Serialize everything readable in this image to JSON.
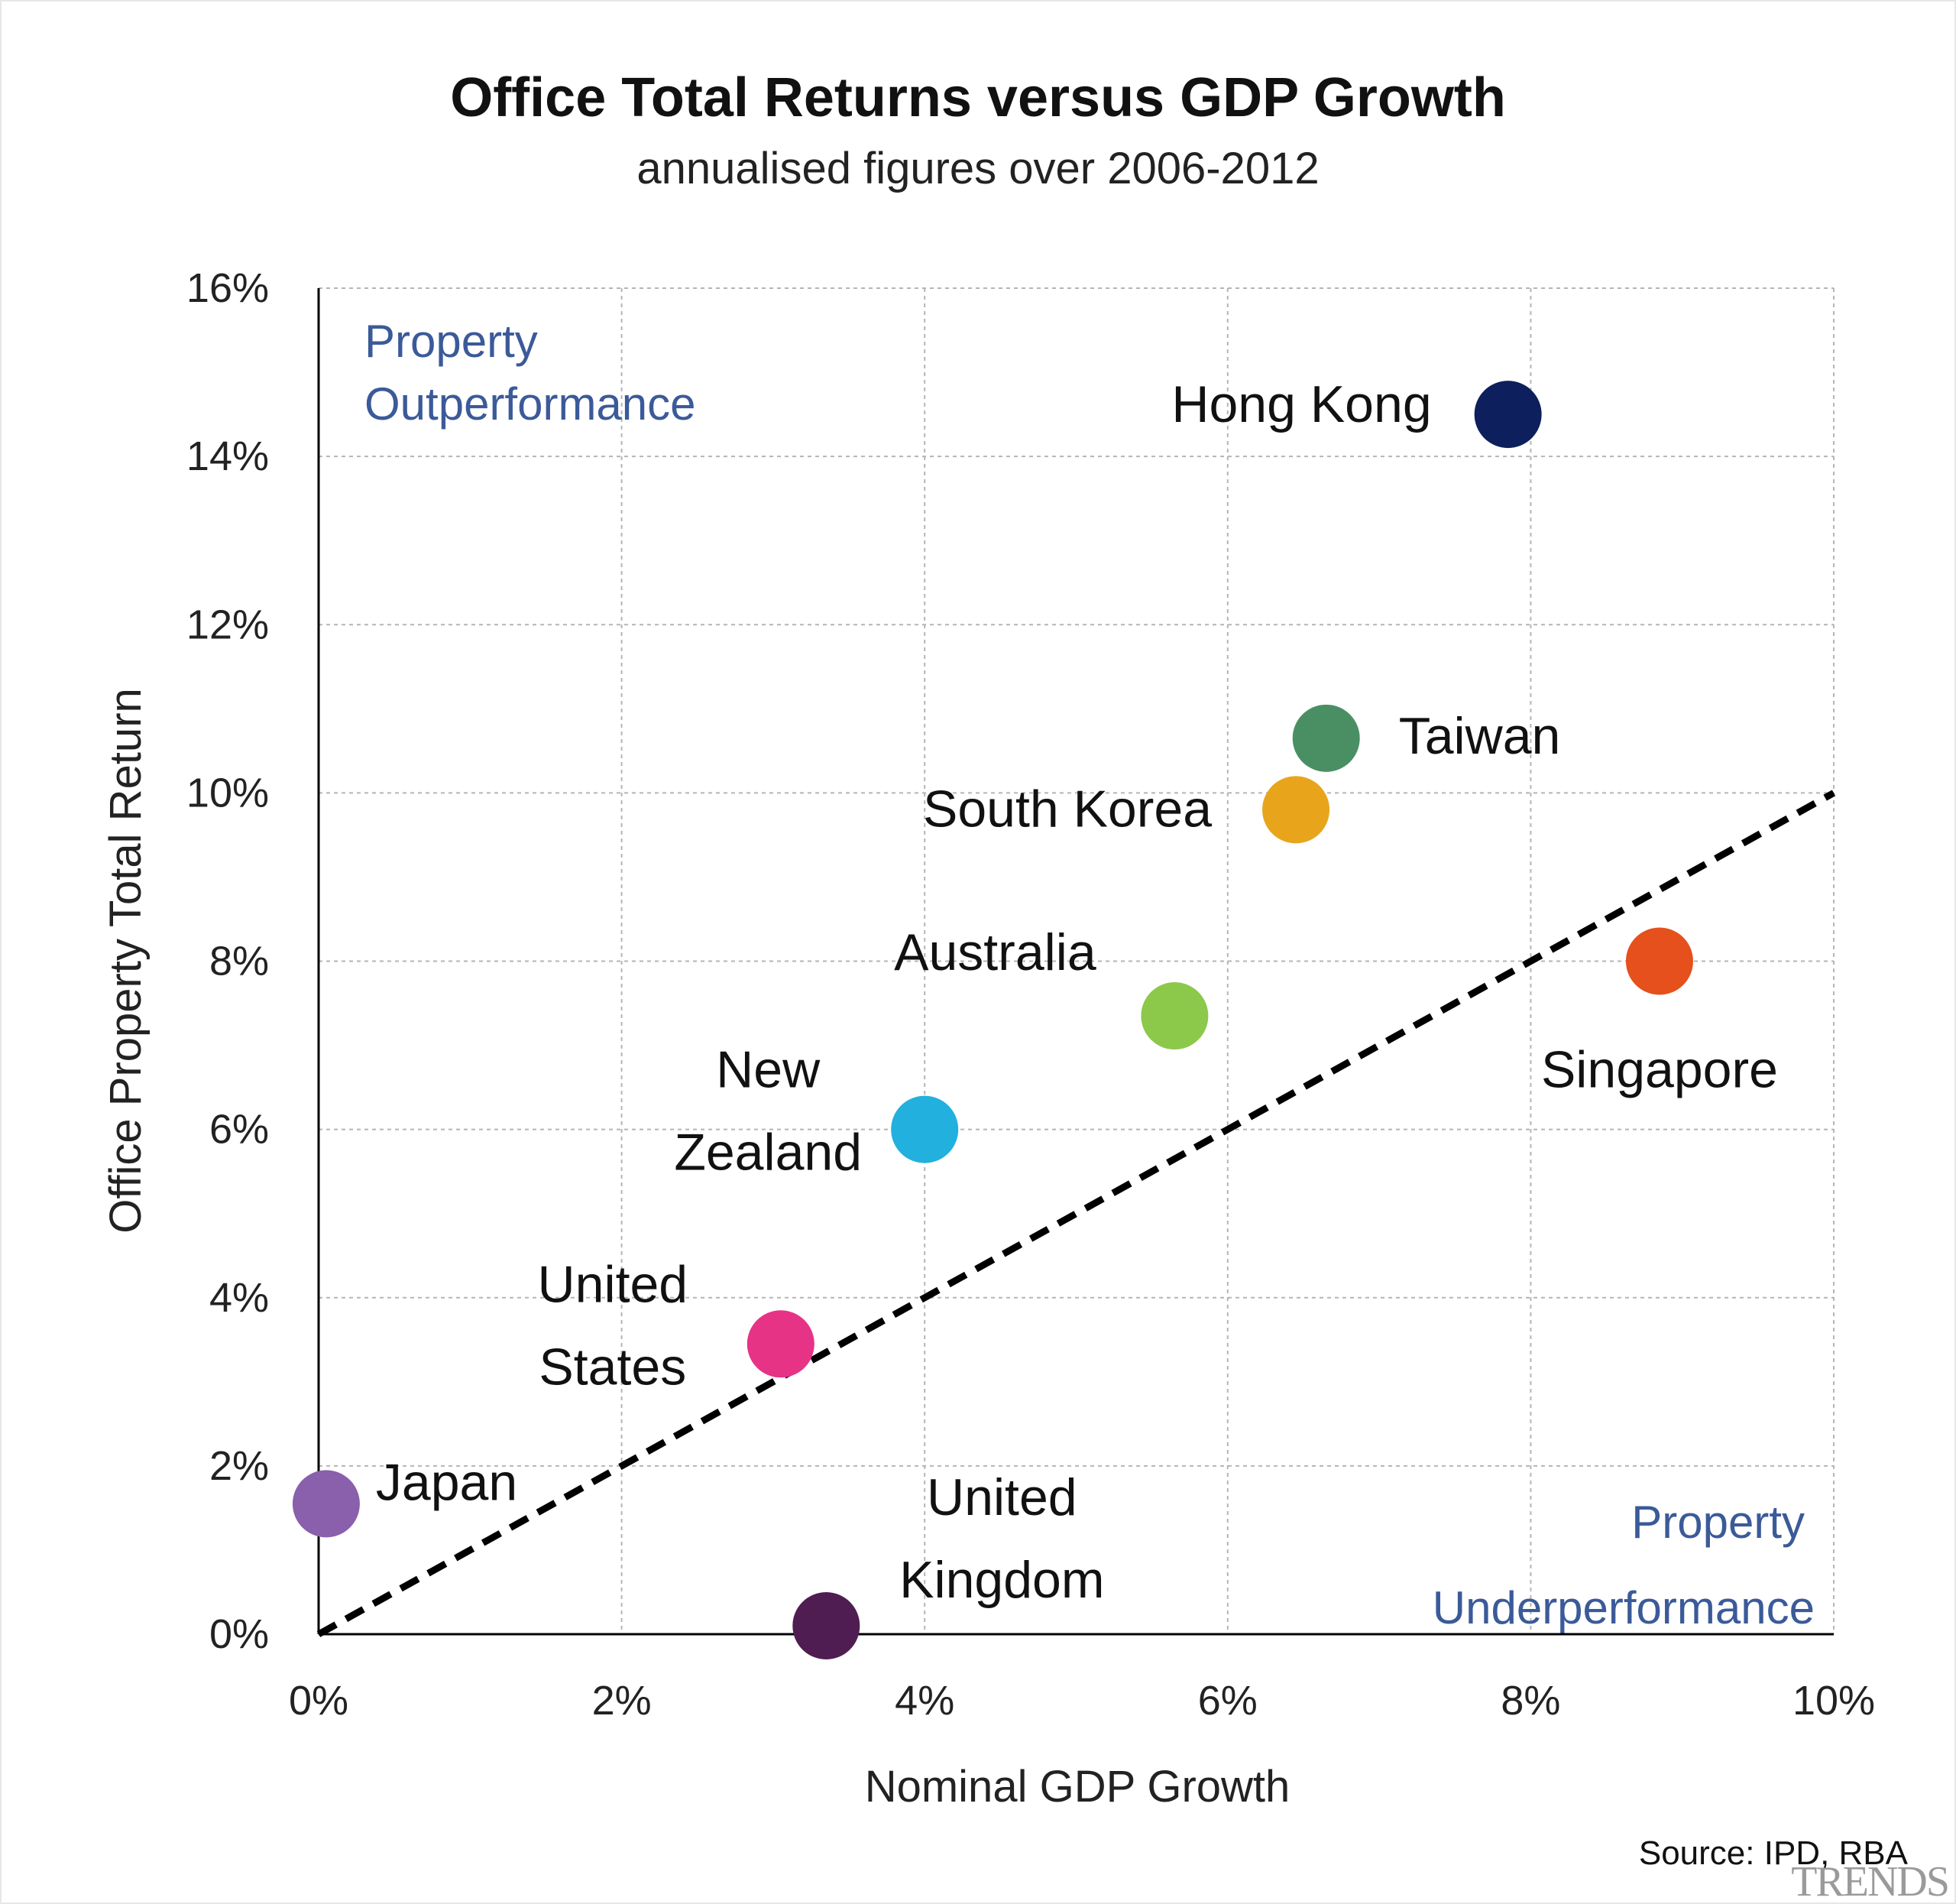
{
  "chart_data": {
    "type": "scatter",
    "title": "Office Total Returns versus GDP Growth",
    "subtitle": "annualised figures over 2006-2012",
    "xlabel": "Nominal GDP Growth",
    "ylabel": "Office Property Total Return",
    "xlim": [
      0,
      10
    ],
    "ylim": [
      0,
      16
    ],
    "x_ticks": [
      "0%",
      "2%",
      "4%",
      "6%",
      "8%",
      "10%"
    ],
    "y_ticks": [
      "0%",
      "2%",
      "4%",
      "6%",
      "8%",
      "10%",
      "12%",
      "14%",
      "16%"
    ],
    "grid": true,
    "reference_line": {
      "style": "dashed",
      "points": [
        [
          0,
          0
        ],
        [
          10,
          10
        ]
      ]
    },
    "points": [
      {
        "label": "Hong Kong",
        "x": 7.85,
        "y": 14.5,
        "color": "#0d1f5c"
      },
      {
        "label": "Taiwan",
        "x": 6.65,
        "y": 10.65,
        "color": "#4a8f64"
      },
      {
        "label": "South Korea",
        "x": 6.45,
        "y": 9.8,
        "color": "#e8a51c"
      },
      {
        "label": "Australia",
        "x": 5.65,
        "y": 7.35,
        "color": "#8cc84a"
      },
      {
        "label": "New Zealand",
        "x": 4.0,
        "y": 6.0,
        "color": "#22b0de"
      },
      {
        "label": "United States",
        "x": 3.05,
        "y": 3.45,
        "color": "#e63386"
      },
      {
        "label": "Japan",
        "x": 0.05,
        "y": 1.55,
        "color": "#8a5fab"
      },
      {
        "label": "United Kingdom",
        "x": 3.35,
        "y": 0.1,
        "color": "#4f1d52"
      },
      {
        "label": "Singapore",
        "x": 8.85,
        "y": 8.0,
        "color": "#e5501c"
      }
    ],
    "annotations": [
      {
        "text": "Property Outperformance",
        "lines": [
          "Property",
          "Outperformance"
        ],
        "color": "#3b5a99"
      },
      {
        "text": "Property Underperformance",
        "lines": [
          "Property",
          "Underperformance"
        ],
        "color": "#3b5a99"
      }
    ],
    "source": "Source: IPD, RBA"
  },
  "watermark": "TRENDS",
  "colors": {
    "axis": "#000000",
    "grid": "#b5b5b5",
    "trend_line": "#000000"
  }
}
